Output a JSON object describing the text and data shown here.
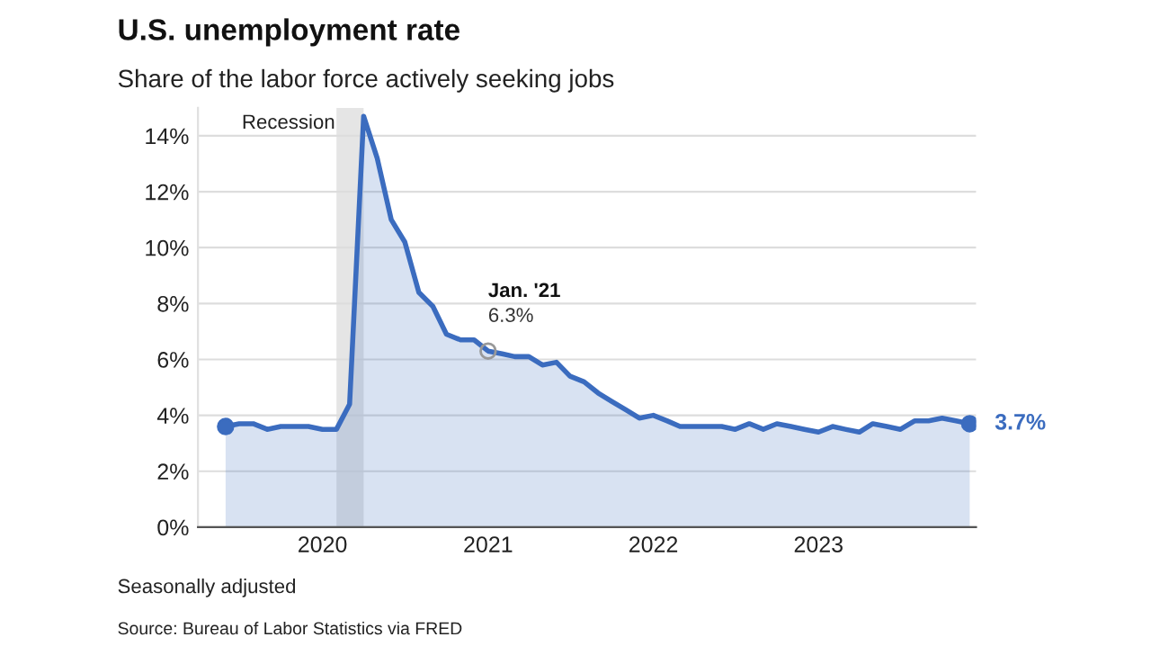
{
  "chart_data": {
    "type": "area",
    "title": "U.S. unemployment rate",
    "subtitle": "Share of the labor force actively seeking jobs",
    "x": [
      "2019-06",
      "2019-07",
      "2019-08",
      "2019-09",
      "2019-10",
      "2019-11",
      "2019-12",
      "2020-01",
      "2020-02",
      "2020-03",
      "2020-04",
      "2020-05",
      "2020-06",
      "2020-07",
      "2020-08",
      "2020-09",
      "2020-10",
      "2020-11",
      "2020-12",
      "2021-01",
      "2021-02",
      "2021-03",
      "2021-04",
      "2021-05",
      "2021-06",
      "2021-07",
      "2021-08",
      "2021-09",
      "2021-10",
      "2021-11",
      "2021-12",
      "2022-01",
      "2022-02",
      "2022-03",
      "2022-04",
      "2022-05",
      "2022-06",
      "2022-07",
      "2022-08",
      "2022-09",
      "2022-10",
      "2022-11",
      "2022-12",
      "2023-01",
      "2023-02",
      "2023-03",
      "2023-04",
      "2023-05",
      "2023-06",
      "2023-07",
      "2023-08",
      "2023-09",
      "2023-10",
      "2023-11",
      "2023-12"
    ],
    "series": [
      {
        "color": "#3b6cbf",
        "values": [
          3.6,
          3.7,
          3.7,
          3.5,
          3.6,
          3.6,
          3.6,
          3.5,
          3.5,
          4.4,
          14.7,
          13.2,
          11.0,
          10.2,
          8.4,
          7.9,
          6.9,
          6.7,
          6.7,
          6.3,
          6.2,
          6.1,
          6.1,
          5.8,
          5.9,
          5.4,
          5.2,
          4.8,
          4.5,
          4.2,
          3.9,
          4.0,
          3.8,
          3.6,
          3.6,
          3.6,
          3.6,
          3.5,
          3.7,
          3.5,
          3.7,
          3.6,
          3.5,
          3.4,
          3.6,
          3.5,
          3.4,
          3.7,
          3.6,
          3.5,
          3.8,
          3.8,
          3.9,
          3.8,
          3.7
        ],
        "value_labels": [
          null,
          null,
          null,
          null,
          null,
          null,
          null,
          null,
          null,
          null,
          null,
          null,
          null,
          null,
          null,
          null,
          null,
          null,
          null,
          "6.3%",
          null,
          null,
          null,
          null,
          null,
          null,
          null,
          null,
          null,
          null,
          null,
          null,
          null,
          null,
          null,
          null,
          null,
          null,
          null,
          null,
          null,
          null,
          null,
          null,
          null,
          null,
          null,
          null,
          null,
          null,
          null,
          null,
          null,
          null,
          "3.7%"
        ]
      }
    ],
    "xlim": [
      "2019-04",
      "2023-12-15"
    ],
    "xticks": [
      {
        "value": "2020-01",
        "label": "2020"
      },
      {
        "value": "2021-01",
        "label": "2021"
      },
      {
        "value": "2022-01",
        "label": "2022"
      },
      {
        "value": "2023-01",
        "label": "2023"
      }
    ],
    "ylim": [
      0,
      15
    ],
    "yticks": [
      {
        "value": 0,
        "label": "0%"
      },
      {
        "value": 2,
        "label": "2%"
      },
      {
        "value": 4,
        "label": "4%"
      },
      {
        "value": 6,
        "label": "6%"
      },
      {
        "value": 8,
        "label": "8%"
      },
      {
        "value": 10,
        "label": "10%"
      },
      {
        "value": 12,
        "label": "12%"
      },
      {
        "value": 14,
        "label": "14%"
      }
    ],
    "grid": "y",
    "bands": [
      {
        "axis": "x",
        "from": "2020-02",
        "to": "2020-04",
        "label": "Recession",
        "color": "#e5e5e5"
      }
    ],
    "annotations": [
      {
        "text": "Jan. '21",
        "x": "2021-01",
        "y": 6.3
      },
      "Seasonally adjusted",
      "Source: Bureau of Labor Statistics via FRED"
    ]
  }
}
